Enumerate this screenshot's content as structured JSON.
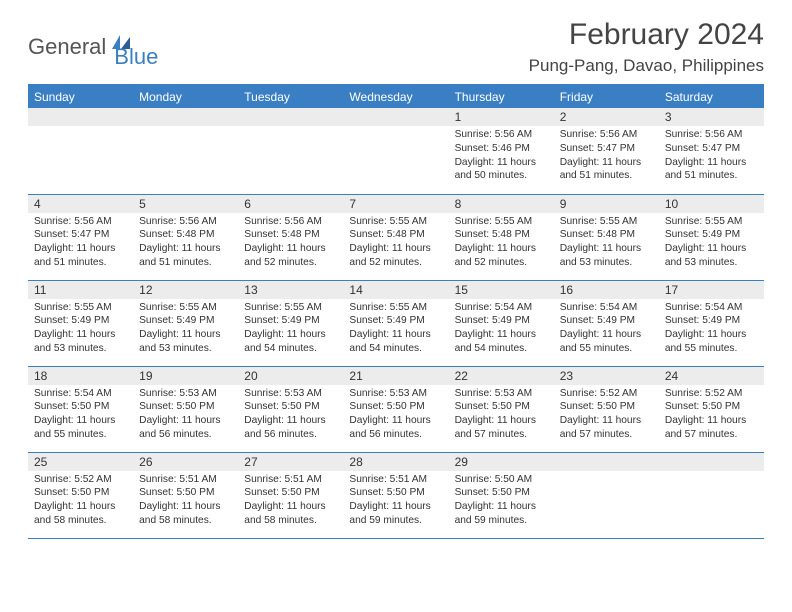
{
  "logo": {
    "part1": "General",
    "part2": "Blue"
  },
  "title": "February 2024",
  "location": "Pung-Pang, Davao, Philippines",
  "colors": {
    "accent": "#3a7fc4",
    "dayNumBg": "#ececec",
    "text": "#333333",
    "background": "#ffffff"
  },
  "weekdays": [
    "Sunday",
    "Monday",
    "Tuesday",
    "Wednesday",
    "Thursday",
    "Friday",
    "Saturday"
  ],
  "firstDayIndex": 4,
  "daysInMonth": 29,
  "days": {
    "1": {
      "sunrise": "5:56 AM",
      "sunset": "5:46 PM",
      "daylight": "11 hours and 50 minutes."
    },
    "2": {
      "sunrise": "5:56 AM",
      "sunset": "5:47 PM",
      "daylight": "11 hours and 51 minutes."
    },
    "3": {
      "sunrise": "5:56 AM",
      "sunset": "5:47 PM",
      "daylight": "11 hours and 51 minutes."
    },
    "4": {
      "sunrise": "5:56 AM",
      "sunset": "5:47 PM",
      "daylight": "11 hours and 51 minutes."
    },
    "5": {
      "sunrise": "5:56 AM",
      "sunset": "5:48 PM",
      "daylight": "11 hours and 51 minutes."
    },
    "6": {
      "sunrise": "5:56 AM",
      "sunset": "5:48 PM",
      "daylight": "11 hours and 52 minutes."
    },
    "7": {
      "sunrise": "5:55 AM",
      "sunset": "5:48 PM",
      "daylight": "11 hours and 52 minutes."
    },
    "8": {
      "sunrise": "5:55 AM",
      "sunset": "5:48 PM",
      "daylight": "11 hours and 52 minutes."
    },
    "9": {
      "sunrise": "5:55 AM",
      "sunset": "5:48 PM",
      "daylight": "11 hours and 53 minutes."
    },
    "10": {
      "sunrise": "5:55 AM",
      "sunset": "5:49 PM",
      "daylight": "11 hours and 53 minutes."
    },
    "11": {
      "sunrise": "5:55 AM",
      "sunset": "5:49 PM",
      "daylight": "11 hours and 53 minutes."
    },
    "12": {
      "sunrise": "5:55 AM",
      "sunset": "5:49 PM",
      "daylight": "11 hours and 53 minutes."
    },
    "13": {
      "sunrise": "5:55 AM",
      "sunset": "5:49 PM",
      "daylight": "11 hours and 54 minutes."
    },
    "14": {
      "sunrise": "5:55 AM",
      "sunset": "5:49 PM",
      "daylight": "11 hours and 54 minutes."
    },
    "15": {
      "sunrise": "5:54 AM",
      "sunset": "5:49 PM",
      "daylight": "11 hours and 54 minutes."
    },
    "16": {
      "sunrise": "5:54 AM",
      "sunset": "5:49 PM",
      "daylight": "11 hours and 55 minutes."
    },
    "17": {
      "sunrise": "5:54 AM",
      "sunset": "5:49 PM",
      "daylight": "11 hours and 55 minutes."
    },
    "18": {
      "sunrise": "5:54 AM",
      "sunset": "5:50 PM",
      "daylight": "11 hours and 55 minutes."
    },
    "19": {
      "sunrise": "5:53 AM",
      "sunset": "5:50 PM",
      "daylight": "11 hours and 56 minutes."
    },
    "20": {
      "sunrise": "5:53 AM",
      "sunset": "5:50 PM",
      "daylight": "11 hours and 56 minutes."
    },
    "21": {
      "sunrise": "5:53 AM",
      "sunset": "5:50 PM",
      "daylight": "11 hours and 56 minutes."
    },
    "22": {
      "sunrise": "5:53 AM",
      "sunset": "5:50 PM",
      "daylight": "11 hours and 57 minutes."
    },
    "23": {
      "sunrise": "5:52 AM",
      "sunset": "5:50 PM",
      "daylight": "11 hours and 57 minutes."
    },
    "24": {
      "sunrise": "5:52 AM",
      "sunset": "5:50 PM",
      "daylight": "11 hours and 57 minutes."
    },
    "25": {
      "sunrise": "5:52 AM",
      "sunset": "5:50 PM",
      "daylight": "11 hours and 58 minutes."
    },
    "26": {
      "sunrise": "5:51 AM",
      "sunset": "5:50 PM",
      "daylight": "11 hours and 58 minutes."
    },
    "27": {
      "sunrise": "5:51 AM",
      "sunset": "5:50 PM",
      "daylight": "11 hours and 58 minutes."
    },
    "28": {
      "sunrise": "5:51 AM",
      "sunset": "5:50 PM",
      "daylight": "11 hours and 59 minutes."
    },
    "29": {
      "sunrise": "5:50 AM",
      "sunset": "5:50 PM",
      "daylight": "11 hours and 59 minutes."
    }
  },
  "labels": {
    "sunrise": "Sunrise:",
    "sunset": "Sunset:",
    "daylight": "Daylight:"
  }
}
